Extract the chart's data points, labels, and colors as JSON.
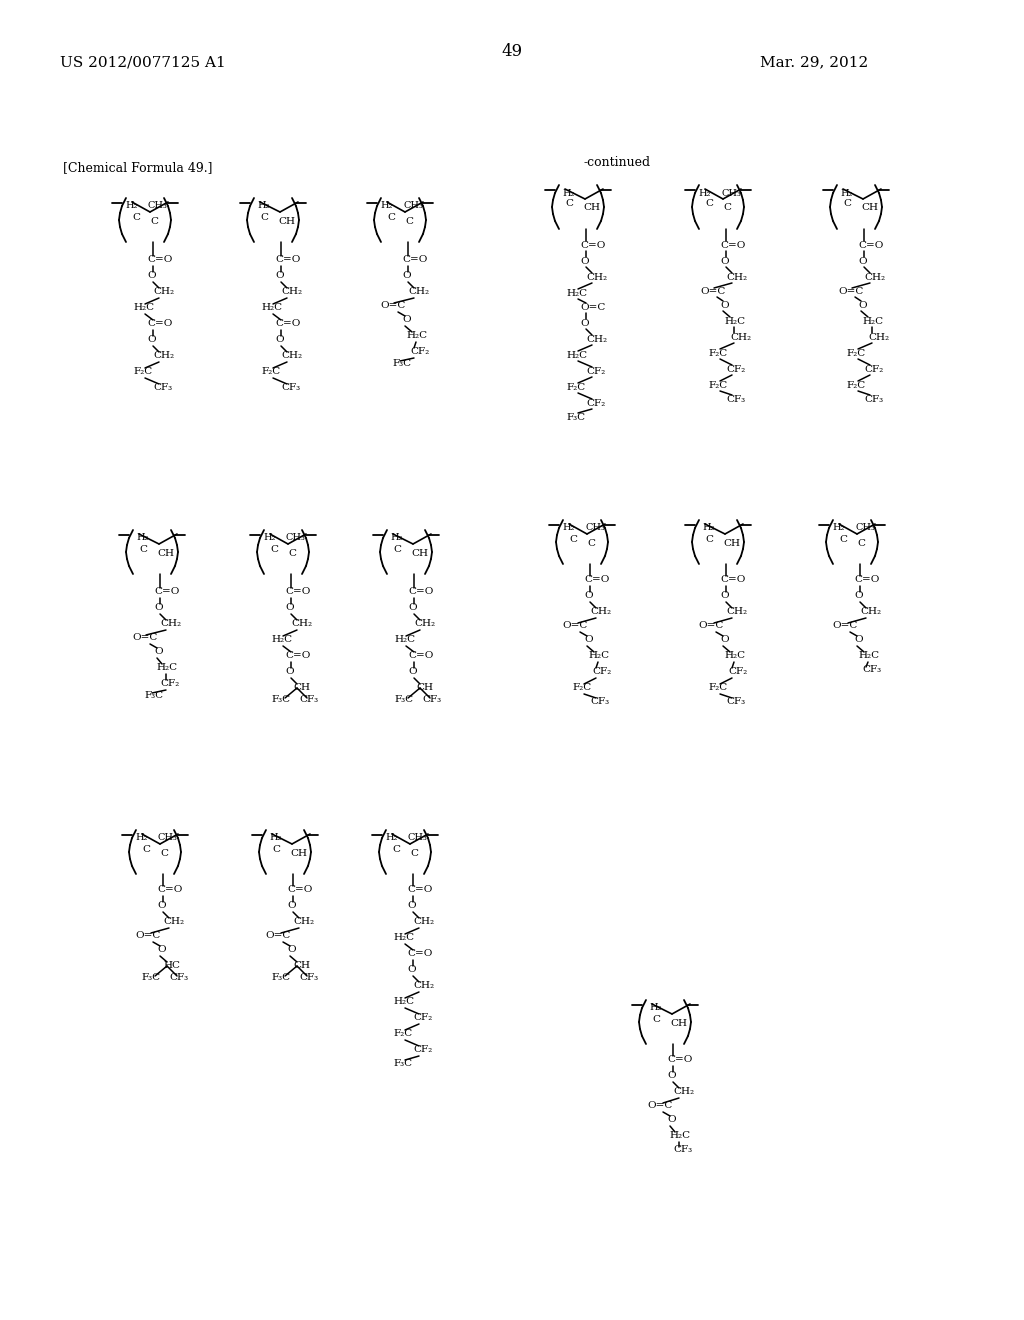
{
  "left_header": "US 2012/0077125 A1",
  "right_header": "Mar. 29, 2012",
  "page_number": "49",
  "formula_label": "[Chemical Formula 49.]",
  "continued_label": "-continued"
}
